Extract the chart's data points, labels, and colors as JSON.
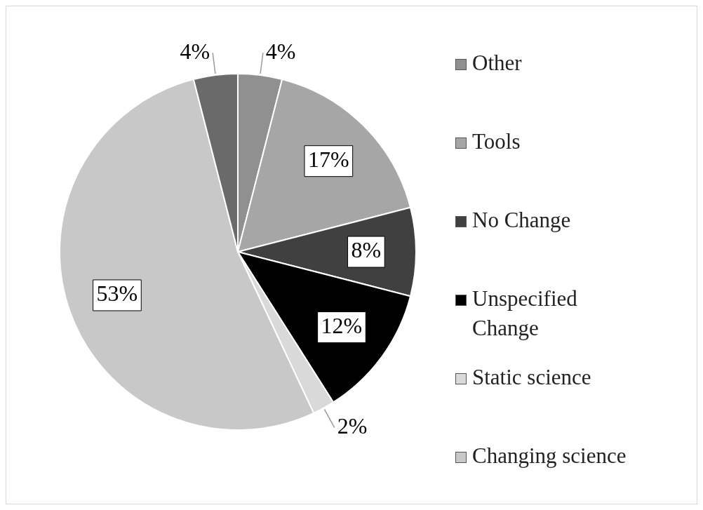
{
  "chart_data": {
    "type": "pie",
    "categories": [
      "Other",
      "Tools",
      "No Change",
      "Unspecified Change",
      "Static science",
      "Changing science",
      null
    ],
    "values": [
      4,
      17,
      8,
      12,
      2,
      53,
      4
    ],
    "colors": [
      "#909090",
      "#a6a6a6",
      "#404040",
      "#000000",
      "#d9d9d9",
      "#c8c8c8",
      "#6a6a6a"
    ],
    "value_labels": [
      "4%",
      "17%",
      "8%",
      "12%",
      "2%",
      "53%",
      "4%"
    ],
    "legend": "right"
  }
}
